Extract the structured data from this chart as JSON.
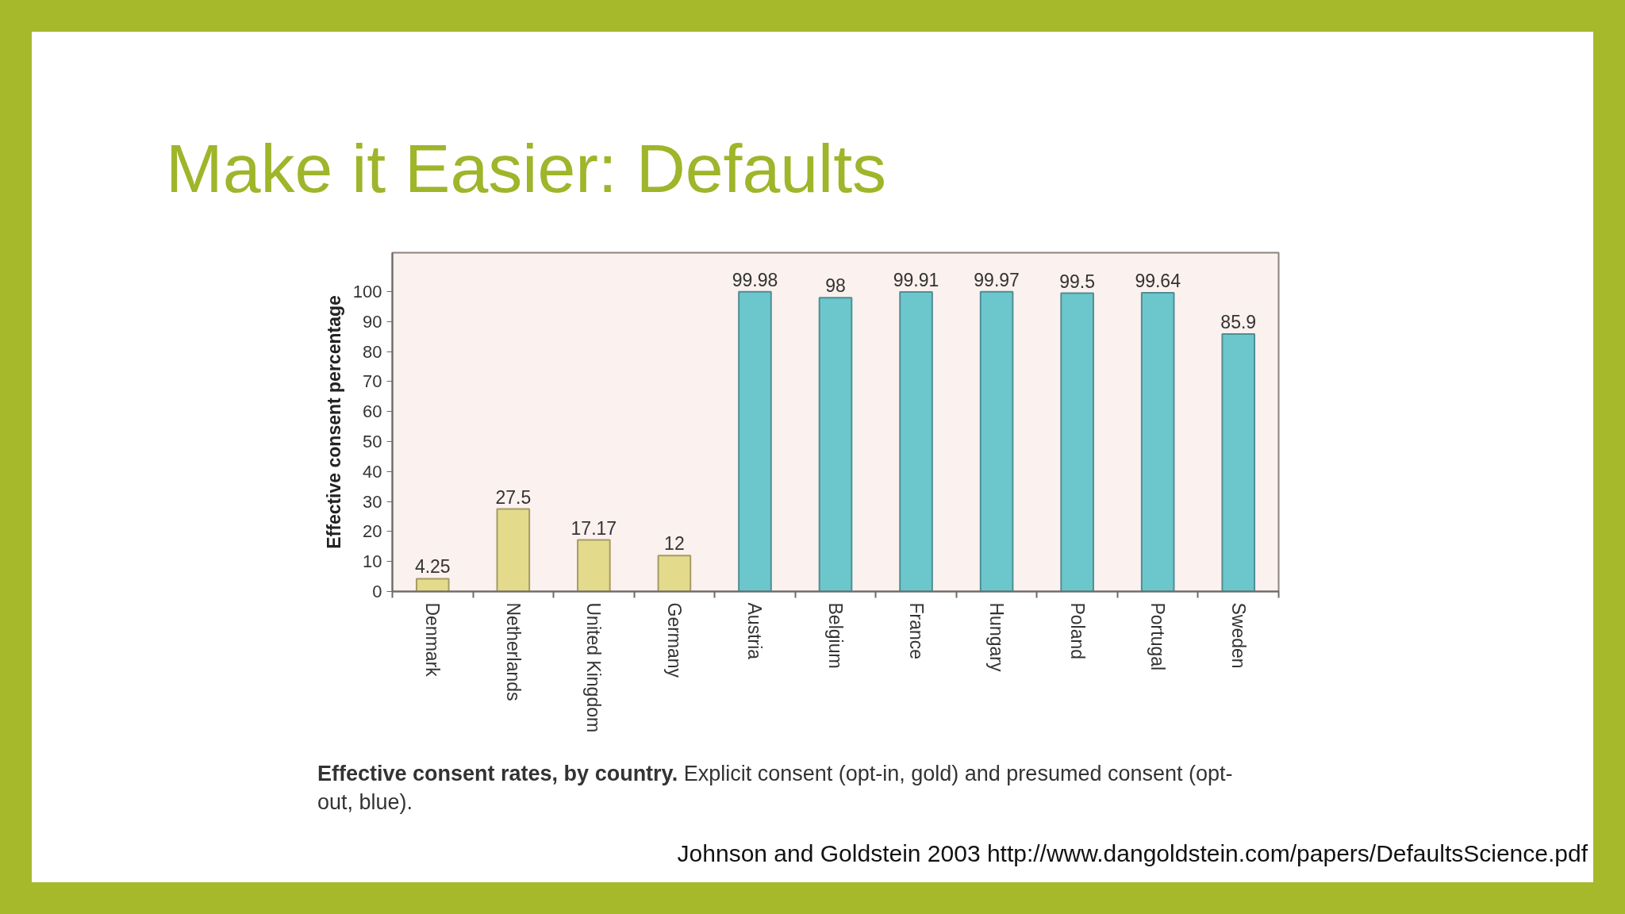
{
  "chart_data": {
    "type": "bar",
    "title": "Make it Easier: Defaults",
    "ylabel": "Effective consent percentage",
    "categories": [
      "Denmark",
      "Netherlands",
      "United Kingdom",
      "Germany",
      "Austria",
      "Belgium",
      "France",
      "Hungary",
      "Poland",
      "Portugal",
      "Sweden"
    ],
    "values": [
      4.25,
      27.5,
      17.17,
      12,
      99.98,
      98,
      99.91,
      99.97,
      99.5,
      99.64,
      85.9
    ],
    "colors": [
      "#e4da8c",
      "#e4da8c",
      "#e4da8c",
      "#e4da8c",
      "#6cc7cd",
      "#6cc7cd",
      "#6cc7cd",
      "#6cc7cd",
      "#6cc7cd",
      "#6cc7cd",
      "#6cc7cd"
    ],
    "ylim": [
      0,
      113
    ],
    "yticks": [
      0,
      10,
      20,
      30,
      40,
      50,
      60,
      70,
      80,
      90,
      100
    ],
    "data_labels": true,
    "annotations": [
      "Effective consent rates, by country.",
      "Explicit consent (opt-in, gold) and presumed consent (opt-out, blue).",
      "Johnson and Goldstein 2003 http://www.dangoldstein.com/papers/DefaultsScience.pdf"
    ]
  }
}
